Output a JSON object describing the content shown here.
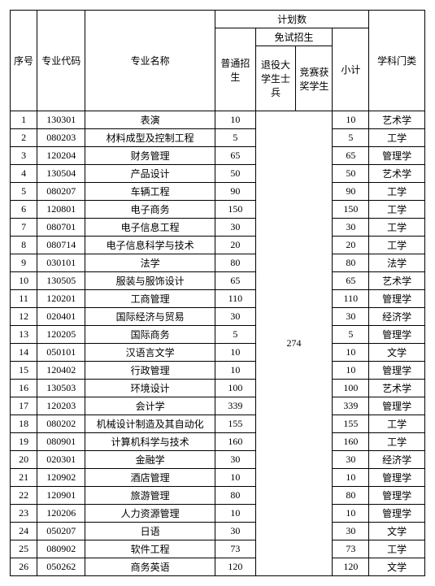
{
  "headers": {
    "seq": "序号",
    "code": "专业代码",
    "name": "专业名称",
    "plan_count": "计划数",
    "putong": "普通招生",
    "mianshi": "免试招生",
    "tuiyi": "退役大学生士兵",
    "jingsai": "竞赛获奖学生",
    "xiaoji": "小计",
    "xueke": "学科门类"
  },
  "merged_mianshi_value": "274",
  "rows": [
    {
      "seq": "1",
      "code": "130301",
      "name": "表演",
      "putong": "10",
      "xiaoji": "10",
      "xueke": "艺术学"
    },
    {
      "seq": "2",
      "code": "080203",
      "name": "材料成型及控制工程",
      "putong": "5",
      "xiaoji": "5",
      "xueke": "工学"
    },
    {
      "seq": "3",
      "code": "120204",
      "name": "财务管理",
      "putong": "65",
      "xiaoji": "65",
      "xueke": "管理学"
    },
    {
      "seq": "4",
      "code": "130504",
      "name": "产品设计",
      "putong": "50",
      "xiaoji": "50",
      "xueke": "艺术学"
    },
    {
      "seq": "5",
      "code": "080207",
      "name": "车辆工程",
      "putong": "90",
      "xiaoji": "90",
      "xueke": "工学"
    },
    {
      "seq": "6",
      "code": "120801",
      "name": "电子商务",
      "putong": "150",
      "xiaoji": "150",
      "xueke": "工学"
    },
    {
      "seq": "7",
      "code": "080701",
      "name": "电子信息工程",
      "putong": "30",
      "xiaoji": "30",
      "xueke": "工学"
    },
    {
      "seq": "8",
      "code": "080714",
      "name": "电子信息科学与技术",
      "putong": "20",
      "xiaoji": "20",
      "xueke": "工学"
    },
    {
      "seq": "9",
      "code": "030101",
      "name": "法学",
      "putong": "80",
      "xiaoji": "80",
      "xueke": "法学"
    },
    {
      "seq": "10",
      "code": "130505",
      "name": "服装与服饰设计",
      "putong": "65",
      "xiaoji": "65",
      "xueke": "艺术学"
    },
    {
      "seq": "11",
      "code": "120201",
      "name": "工商管理",
      "putong": "110",
      "xiaoji": "110",
      "xueke": "管理学"
    },
    {
      "seq": "12",
      "code": "020401",
      "name": "国际经济与贸易",
      "putong": "30",
      "xiaoji": "30",
      "xueke": "经济学"
    },
    {
      "seq": "13",
      "code": "120205",
      "name": "国际商务",
      "putong": "5",
      "xiaoji": "5",
      "xueke": "管理学"
    },
    {
      "seq": "14",
      "code": "050101",
      "name": "汉语言文学",
      "putong": "10",
      "xiaoji": "10",
      "xueke": "文学"
    },
    {
      "seq": "15",
      "code": "120402",
      "name": "行政管理",
      "putong": "10",
      "xiaoji": "10",
      "xueke": "管理学"
    },
    {
      "seq": "16",
      "code": "130503",
      "name": "环境设计",
      "putong": "100",
      "xiaoji": "100",
      "xueke": "艺术学"
    },
    {
      "seq": "17",
      "code": "120203",
      "name": "会计学",
      "putong": "339",
      "xiaoji": "339",
      "xueke": "管理学"
    },
    {
      "seq": "18",
      "code": "080202",
      "name": "机械设计制造及其自动化",
      "putong": "155",
      "xiaoji": "155",
      "xueke": "工学"
    },
    {
      "seq": "19",
      "code": "080901",
      "name": "计算机科学与技术",
      "putong": "160",
      "xiaoji": "160",
      "xueke": "工学"
    },
    {
      "seq": "20",
      "code": "020301",
      "name": "金融学",
      "putong": "30",
      "xiaoji": "30",
      "xueke": "经济学"
    },
    {
      "seq": "21",
      "code": "120902",
      "name": "酒店管理",
      "putong": "10",
      "xiaoji": "10",
      "xueke": "管理学"
    },
    {
      "seq": "22",
      "code": "120901",
      "name": "旅游管理",
      "putong": "80",
      "xiaoji": "80",
      "xueke": "管理学"
    },
    {
      "seq": "23",
      "code": "120206",
      "name": "人力资源管理",
      "putong": "10",
      "xiaoji": "10",
      "xueke": "管理学"
    },
    {
      "seq": "24",
      "code": "050207",
      "name": "日语",
      "putong": "30",
      "xiaoji": "30",
      "xueke": "文学"
    },
    {
      "seq": "25",
      "code": "080902",
      "name": "软件工程",
      "putong": "73",
      "xiaoji": "73",
      "xueke": "工学"
    },
    {
      "seq": "26",
      "code": "050262",
      "name": "商务英语",
      "putong": "120",
      "xiaoji": "120",
      "xueke": "文学"
    }
  ]
}
